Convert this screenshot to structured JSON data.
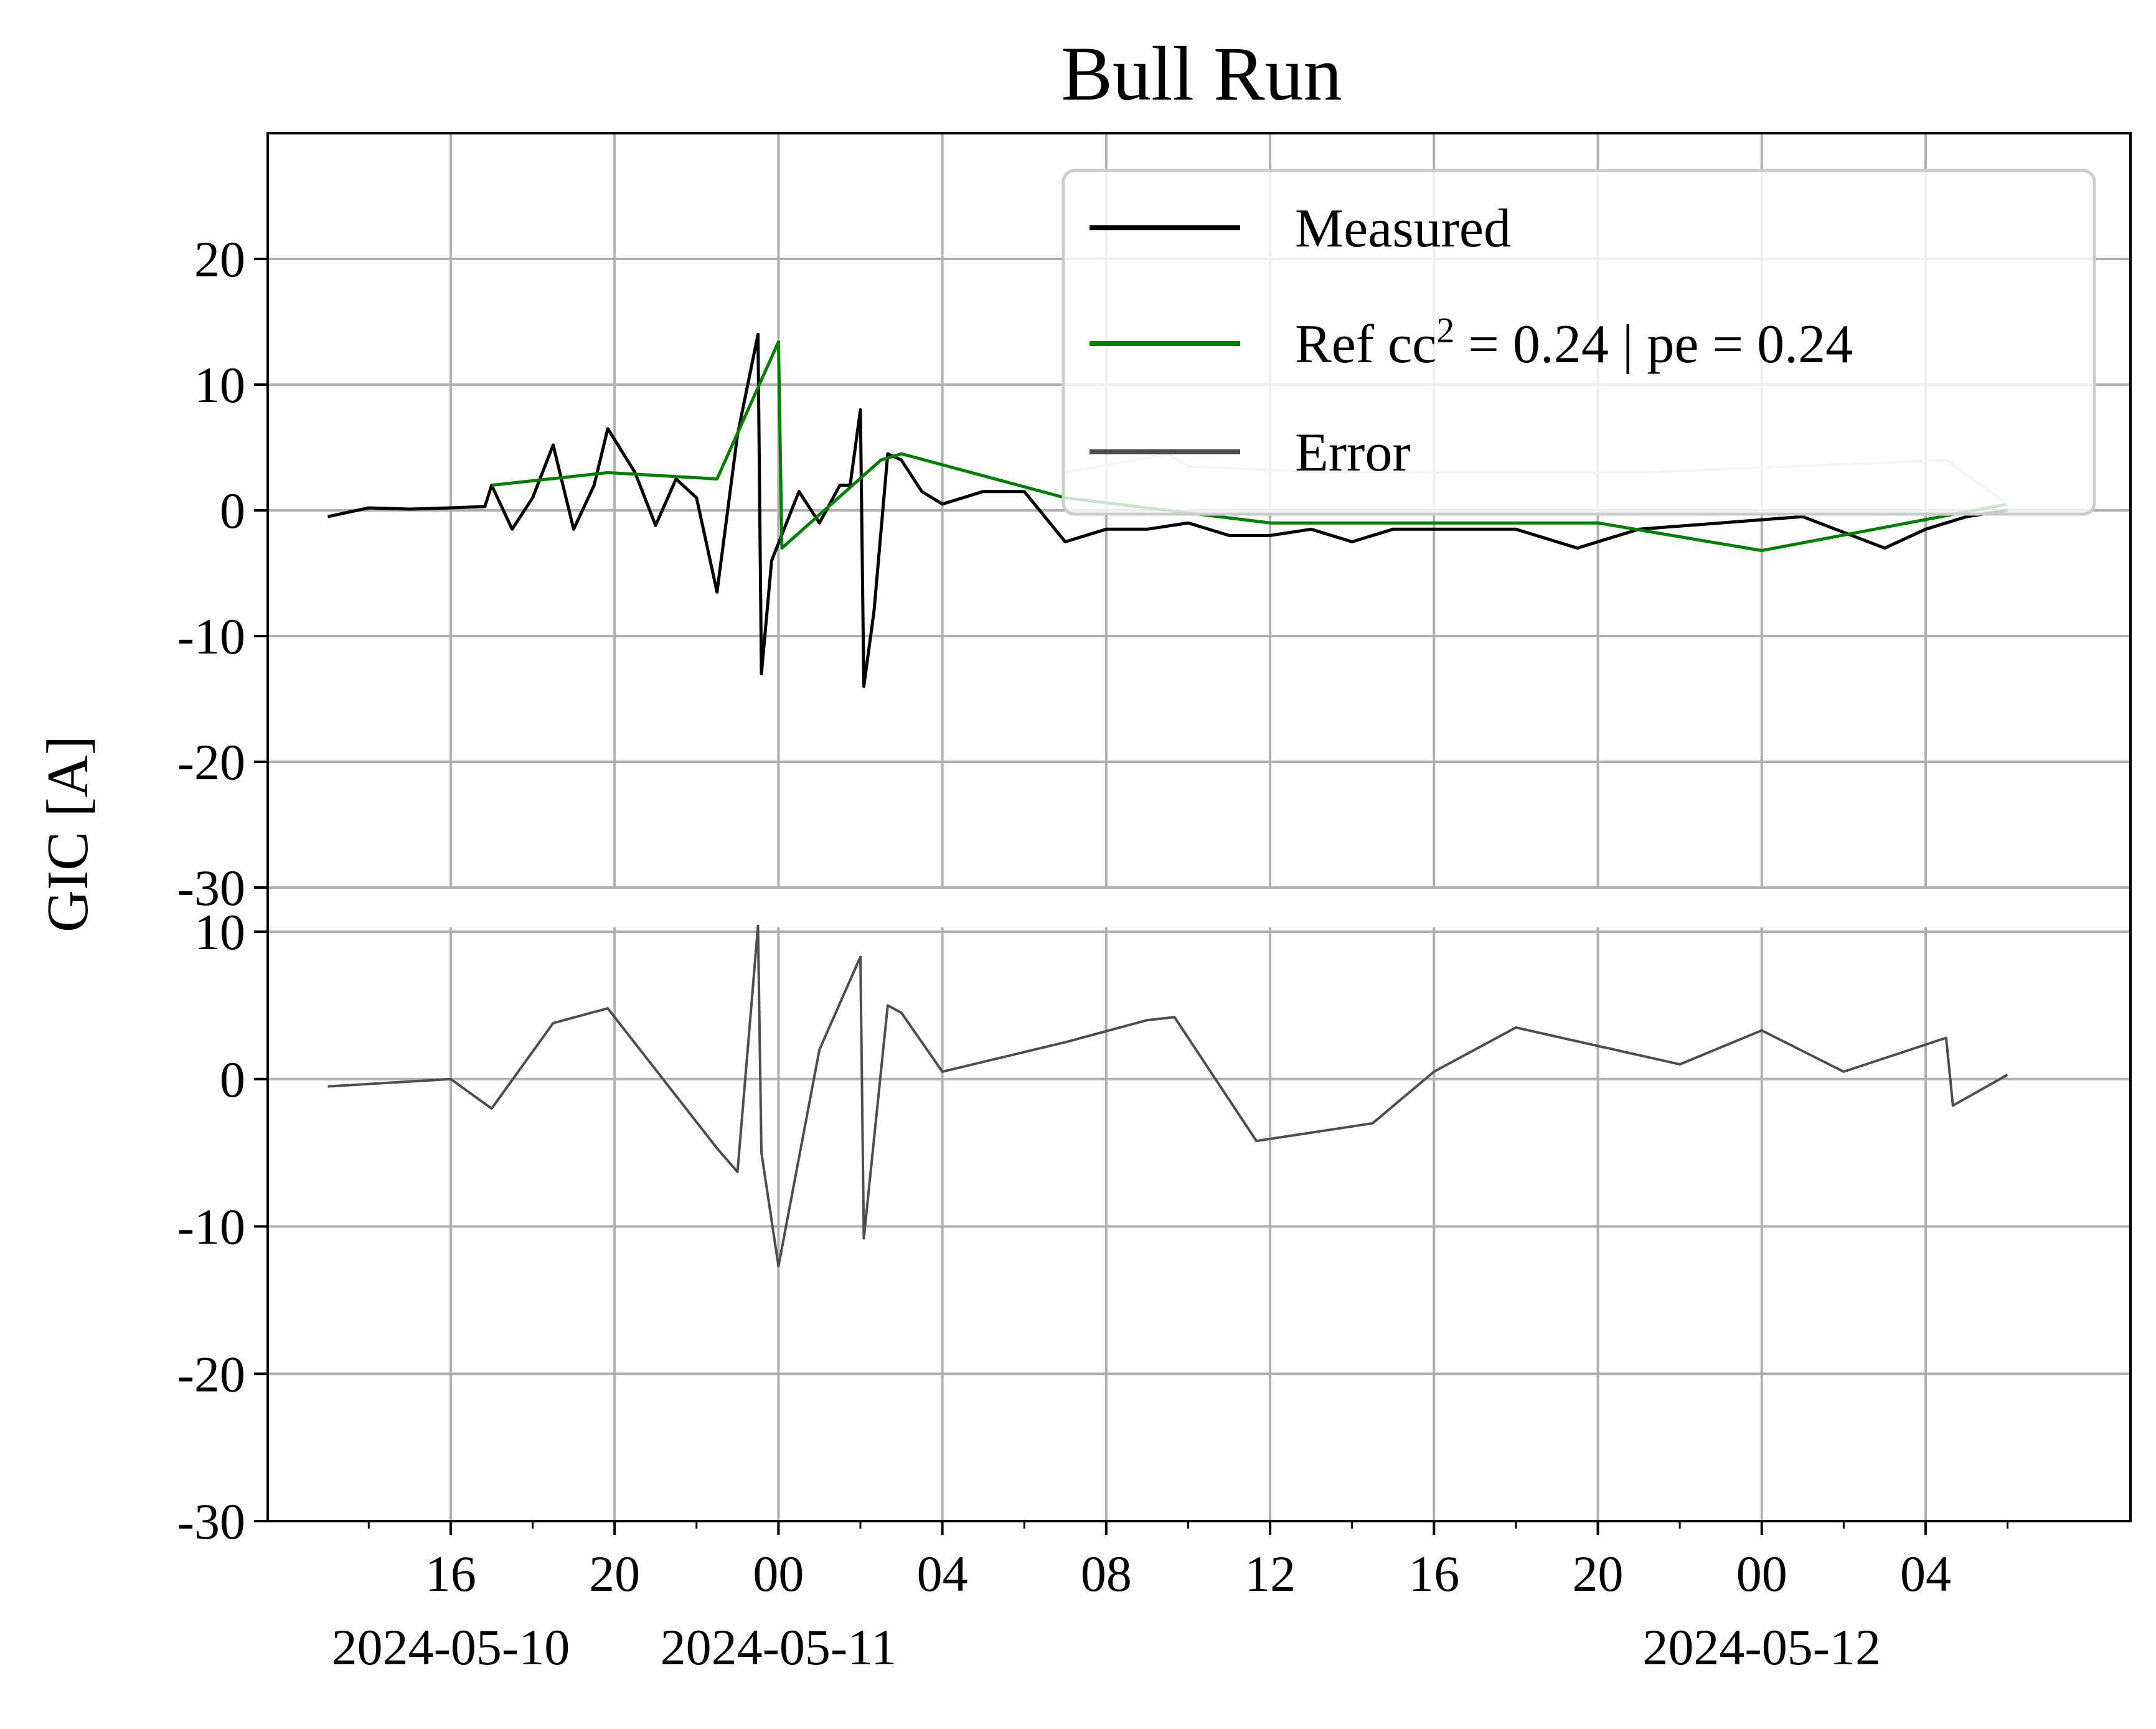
{
  "chart_data": {
    "type": "line",
    "title": "Bull Run",
    "ylabel": "GIC [A]",
    "x_range": [
      "2024-05-10T11:32",
      "2024-05-12T09:00"
    ],
    "x_ticks": [
      {
        "time": "2024-05-10T16:00",
        "label": "16",
        "date": "2024-05-10"
      },
      {
        "time": "2024-05-10T20:00",
        "label": "20",
        "date": ""
      },
      {
        "time": "2024-05-11T00:00",
        "label": "00",
        "date": "2024-05-11"
      },
      {
        "time": "2024-05-11T04:00",
        "label": "04",
        "date": ""
      },
      {
        "time": "2024-05-11T08:00",
        "label": "08",
        "date": ""
      },
      {
        "time": "2024-05-11T12:00",
        "label": "12",
        "date": ""
      },
      {
        "time": "2024-05-11T16:00",
        "label": "16",
        "date": ""
      },
      {
        "time": "2024-05-11T20:00",
        "label": "20",
        "date": ""
      },
      {
        "time": "2024-05-12T00:00",
        "label": "00",
        "date": "2024-05-12"
      },
      {
        "time": "2024-05-12T04:00",
        "label": "04",
        "date": ""
      }
    ],
    "grid": true,
    "legend": {
      "placement": "top-right",
      "entries": [
        {
          "label": "Measured",
          "sup": "",
          "label_rest": "",
          "color": "#000000"
        },
        {
          "label": "Ref  cc",
          "sup": "2",
          "label_rest": " = 0.24 | pe = 0.24",
          "color": "#008000"
        },
        {
          "label": "Error",
          "sup": "",
          "label_rest": "",
          "color": "#4d4d4d"
        }
      ]
    },
    "panels": [
      {
        "name": "top",
        "ylim": [
          -30,
          30
        ],
        "yticks": [
          20,
          10,
          0,
          -10,
          -20,
          -30
        ],
        "ytick_labels": [
          "20",
          "10",
          "0",
          "-10",
          "-20",
          "-30"
        ],
        "series": [
          {
            "name": "Measured",
            "color": "#000000",
            "points": [
              [
                "2024-05-10T13:00",
                -0.5
              ],
              [
                "2024-05-10T14:00",
                0.2
              ],
              [
                "2024-05-10T15:00",
                0.1
              ],
              [
                "2024-05-10T16:00",
                0.2
              ],
              [
                "2024-05-10T16:50",
                0.3
              ],
              [
                "2024-05-10T17:00",
                2.0
              ],
              [
                "2024-05-10T17:30",
                -1.5
              ],
              [
                "2024-05-10T18:00",
                1.0
              ],
              [
                "2024-05-10T18:30",
                5.2
              ],
              [
                "2024-05-10T19:00",
                -1.5
              ],
              [
                "2024-05-10T19:30",
                2.0
              ],
              [
                "2024-05-10T19:50",
                6.5
              ],
              [
                "2024-05-10T20:30",
                3.0
              ],
              [
                "2024-05-10T21:00",
                -1.2
              ],
              [
                "2024-05-10T21:30",
                2.5
              ],
              [
                "2024-05-10T22:00",
                1.0
              ],
              [
                "2024-05-10T22:30",
                -6.5
              ],
              [
                "2024-05-10T23:00",
                6.0
              ],
              [
                "2024-05-10T23:30",
                14.0
              ],
              [
                "2024-05-10T23:35",
                -13.0
              ],
              [
                "2024-05-10T23:50",
                -4.0
              ],
              [
                "2024-05-11T00:30",
                1.5
              ],
              [
                "2024-05-11T01:00",
                -1.0
              ],
              [
                "2024-05-11T01:30",
                2.0
              ],
              [
                "2024-05-11T01:45",
                2.0
              ],
              [
                "2024-05-11T02:00",
                8.0
              ],
              [
                "2024-05-11T02:05",
                -14.0
              ],
              [
                "2024-05-11T02:20",
                -8.0
              ],
              [
                "2024-05-11T02:40",
                4.5
              ],
              [
                "2024-05-11T03:00",
                4.0
              ],
              [
                "2024-05-11T03:30",
                1.5
              ],
              [
                "2024-05-11T04:00",
                0.5
              ],
              [
                "2024-05-11T05:00",
                1.5
              ],
              [
                "2024-05-11T06:00",
                1.5
              ],
              [
                "2024-05-11T07:00",
                -2.5
              ],
              [
                "2024-05-11T08:00",
                -1.5
              ],
              [
                "2024-05-11T09:00",
                -1.5
              ],
              [
                "2024-05-11T10:00",
                -1.0
              ],
              [
                "2024-05-11T11:00",
                -2.0
              ],
              [
                "2024-05-11T12:00",
                -2.0
              ],
              [
                "2024-05-11T13:00",
                -1.5
              ],
              [
                "2024-05-11T14:00",
                -2.5
              ],
              [
                "2024-05-11T15:00",
                -1.5
              ],
              [
                "2024-05-11T16:00",
                -1.5
              ],
              [
                "2024-05-11T18:00",
                -1.5
              ],
              [
                "2024-05-11T19:30",
                -3.0
              ],
              [
                "2024-05-11T21:00",
                -1.5
              ],
              [
                "2024-05-11T23:00",
                -1.0
              ],
              [
                "2024-05-12T01:00",
                -0.5
              ],
              [
                "2024-05-12T03:00",
                -3.0
              ],
              [
                "2024-05-12T04:00",
                -1.5
              ],
              [
                "2024-05-12T05:00",
                -0.5
              ],
              [
                "2024-05-12T06:00",
                0.0
              ]
            ]
          },
          {
            "name": "Ref  cc² = 0.24 | pe = 0.24",
            "color": "#008000",
            "points": [
              [
                "2024-05-10T17:00",
                2.0
              ],
              [
                "2024-05-10T19:50",
                3.0
              ],
              [
                "2024-05-10T22:30",
                2.5
              ],
              [
                "2024-05-11T00:00",
                13.4
              ],
              [
                "2024-05-11T00:05",
                -3.0
              ],
              [
                "2024-05-11T02:30",
                4.0
              ],
              [
                "2024-05-11T03:00",
                4.5
              ],
              [
                "2024-05-11T07:00",
                1.0
              ],
              [
                "2024-05-11T12:00",
                -1.0
              ],
              [
                "2024-05-11T20:00",
                -1.0
              ],
              [
                "2024-05-12T00:00",
                -3.2
              ],
              [
                "2024-05-12T06:00",
                0.5
              ]
            ]
          },
          {
            "name": "Error",
            "color": "#cccccc",
            "points": [
              [
                "2024-05-11T07:00",
                3.0
              ],
              [
                "2024-05-11T09:30",
                4.5
              ],
              [
                "2024-05-11T10:00",
                3.5
              ],
              [
                "2024-05-11T13:30",
                3.0
              ],
              [
                "2024-05-11T16:00",
                3.0
              ],
              [
                "2024-05-11T21:00",
                3.0
              ],
              [
                "2024-05-12T04:30",
                4.0
              ],
              [
                "2024-05-12T06:00",
                0.5
              ]
            ]
          }
        ]
      },
      {
        "name": "bottom",
        "ylim": [
          -30,
          13
        ],
        "yticks": [
          10,
          0,
          -10,
          -20,
          -30
        ],
        "ytick_labels": [
          "10",
          "0",
          "-10",
          "-20",
          "-30"
        ],
        "series": [
          {
            "name": "Error",
            "color": "#4d4d4d",
            "points": [
              [
                "2024-05-10T13:00",
                -0.5
              ],
              [
                "2024-05-10T16:00",
                0.0
              ],
              [
                "2024-05-10T17:00",
                -2.0
              ],
              [
                "2024-05-10T18:30",
                3.8
              ],
              [
                "2024-05-10T19:50",
                4.8
              ],
              [
                "2024-05-10T22:30",
                -4.7
              ],
              [
                "2024-05-10T23:00",
                -6.3
              ],
              [
                "2024-05-10T23:30",
                10.4
              ],
              [
                "2024-05-10T23:35",
                -5.0
              ],
              [
                "2024-05-11T00:00",
                -12.7
              ],
              [
                "2024-05-11T01:00",
                2.0
              ],
              [
                "2024-05-11T02:00",
                8.3
              ],
              [
                "2024-05-11T02:05",
                -10.8
              ],
              [
                "2024-05-11T02:40",
                5.0
              ],
              [
                "2024-05-11T03:00",
                4.5
              ],
              [
                "2024-05-11T04:00",
                0.5
              ],
              [
                "2024-05-11T07:00",
                2.5
              ],
              [
                "2024-05-11T09:00",
                4.0
              ],
              [
                "2024-05-11T09:40",
                4.2
              ],
              [
                "2024-05-11T11:40",
                -4.2
              ],
              [
                "2024-05-11T14:30",
                -3.0
              ],
              [
                "2024-05-11T16:00",
                0.5
              ],
              [
                "2024-05-11T18:00",
                3.5
              ],
              [
                "2024-05-11T22:00",
                1.0
              ],
              [
                "2024-05-12T00:00",
                3.3
              ],
              [
                "2024-05-12T02:00",
                0.5
              ],
              [
                "2024-05-12T04:30",
                2.8
              ],
              [
                "2024-05-12T04:40",
                -1.8
              ],
              [
                "2024-05-12T06:00",
                0.3
              ]
            ]
          }
        ]
      }
    ]
  }
}
